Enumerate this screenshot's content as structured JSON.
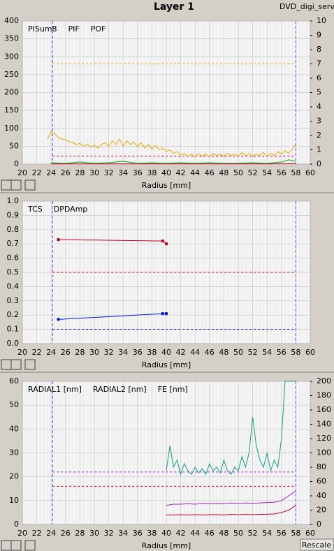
{
  "header": {
    "title": "Layer 1",
    "subtitle": "DVD_digi_serv"
  },
  "controls": {
    "rescale": "Rescale"
  },
  "chart_data": [
    {
      "type": "line",
      "xlabel": "Radius [mm]",
      "xlim": [
        20,
        60
      ],
      "xticks": [
        20,
        22,
        24,
        26,
        28,
        30,
        32,
        34,
        36,
        38,
        40,
        42,
        44,
        46,
        48,
        50,
        52,
        54,
        56,
        58,
        60
      ],
      "ylim": [
        0,
        400
      ],
      "yticks": [
        0,
        50,
        100,
        150,
        200,
        250,
        300,
        350,
        400
      ],
      "y2lim": [
        0,
        10
      ],
      "y2ticks": [
        0,
        1,
        2,
        3,
        4,
        5,
        6,
        7,
        8,
        9,
        10
      ],
      "grid": true,
      "vlines": [
        {
          "value": 24.2,
          "color": "#5a3cf0"
        },
        {
          "value": 58,
          "color": "#5a3cf0"
        }
      ],
      "hlines": [
        {
          "value": 280,
          "color": "#d8a000"
        },
        {
          "value": 22,
          "color": "#c00020"
        }
      ],
      "series": [
        {
          "name": "PISum8",
          "color": "#e8a800",
          "x": [
            23.5,
            24,
            24.5,
            25,
            25.5,
            26,
            26.5,
            27,
            27.5,
            28,
            28.5,
            29,
            29.5,
            30,
            30.5,
            31,
            31.5,
            32,
            32.5,
            33,
            33.5,
            34,
            34.5,
            35,
            35.5,
            36,
            36.5,
            37,
            37.5,
            38,
            38.5,
            39,
            39.5,
            40,
            40.5,
            41,
            41.5,
            42,
            42.5,
            43,
            43.5,
            44,
            44.5,
            45,
            45.5,
            46,
            46.5,
            47,
            47.5,
            48,
            48.5,
            49,
            49.5,
            50,
            50.5,
            51,
            51.5,
            52,
            52.5,
            53,
            53.5,
            54,
            54.5,
            55,
            55.5,
            56,
            56.5,
            57,
            57.5,
            58
          ],
          "values": [
            70,
            92,
            85,
            75,
            70,
            68,
            62,
            60,
            55,
            58,
            50,
            55,
            48,
            52,
            45,
            55,
            60,
            50,
            65,
            55,
            70,
            50,
            65,
            55,
            62,
            48,
            60,
            45,
            55,
            42,
            52,
            40,
            45,
            35,
            40,
            30,
            35,
            25,
            30,
            22,
            28,
            20,
            30,
            22,
            28,
            20,
            30,
            24,
            28,
            22,
            30,
            24,
            28,
            22,
            32,
            24,
            30,
            22,
            28,
            24,
            32,
            22,
            30,
            24,
            35,
            28,
            38,
            30,
            42,
            55
          ]
        },
        {
          "name": "PIF",
          "color": "#10a010",
          "axis": "y2",
          "x": [
            24,
            26,
            28,
            30,
            32,
            34,
            36,
            38,
            40,
            42,
            44,
            46,
            48,
            50,
            52,
            54,
            56,
            57,
            58
          ],
          "values": [
            0.1,
            0.05,
            0.15,
            0.05,
            0.1,
            0.2,
            0.05,
            0.1,
            0.05,
            0.1,
            0.05,
            0.1,
            0.05,
            0.05,
            0.1,
            0.05,
            0.15,
            0.3,
            0.2
          ]
        },
        {
          "name": "POF",
          "color": "#c00020",
          "axis": "y2",
          "x": [
            24,
            30,
            36,
            42,
            48,
            54,
            58
          ],
          "values": [
            0.02,
            0.02,
            0.02,
            0.02,
            0.02,
            0.02,
            0.05
          ]
        }
      ]
    },
    {
      "type": "line",
      "xlabel": "Radius [mm]",
      "xlim": [
        20,
        60
      ],
      "xticks": [
        20,
        22,
        24,
        26,
        28,
        30,
        32,
        34,
        36,
        38,
        40,
        42,
        44,
        46,
        48,
        50,
        52,
        54,
        56,
        58,
        60
      ],
      "ylim": [
        0,
        1
      ],
      "yticks": [
        {
          "value": 0,
          "label": "0.0"
        },
        0.1,
        0.2,
        0.3,
        0.4,
        0.5,
        0.6,
        0.7,
        0.8,
        0.9,
        {
          "value": 1,
          "label": "1.0"
        }
      ],
      "grid": true,
      "vlines": [
        {
          "value": 24.2,
          "color": "#5a3cf0"
        },
        {
          "value": 58,
          "color": "#5a3cf0"
        }
      ],
      "hlines": [
        {
          "value": 0.5,
          "color": "#c00020"
        },
        {
          "value": 0.1,
          "color": "#0018e0"
        }
      ],
      "series": [
        {
          "name": "TCS",
          "color": "#0018e0",
          "x": [
            25,
            39.5,
            40
          ],
          "values": [
            0.17,
            0.21,
            0.21
          ]
        },
        {
          "name": "DPDAmp",
          "color": "#c00020",
          "x": [
            25,
            39.5,
            40
          ],
          "values": [
            0.73,
            0.72,
            0.7
          ]
        }
      ]
    },
    {
      "type": "line",
      "xlabel": "Radius [mm]",
      "xlim": [
        20,
        60
      ],
      "xticks": [
        20,
        22,
        24,
        26,
        28,
        30,
        32,
        34,
        36,
        38,
        40,
        42,
        44,
        46,
        48,
        50,
        52,
        54,
        56,
        58,
        60
      ],
      "ylim": [
        0,
        60
      ],
      "yticks": [
        0,
        10,
        20,
        30,
        40,
        50,
        60
      ],
      "y2lim": [
        0,
        200
      ],
      "y2ticks": [
        0,
        20,
        40,
        60,
        80,
        100,
        120,
        140,
        160,
        180,
        200
      ],
      "grid": true,
      "vlines": [
        {
          "value": 24.2,
          "color": "#5a3cf0"
        },
        {
          "value": 58,
          "color": "#5a3cf0"
        }
      ],
      "hlines": [
        {
          "value": 22,
          "color": "#a020c0"
        },
        {
          "value": 16,
          "color": "#c00020"
        }
      ],
      "series": [
        {
          "name": "RADIAL1 [nm]",
          "color": "#a020c0",
          "x": [
            40,
            41,
            42,
            43,
            44,
            45,
            46,
            47,
            48,
            49,
            50,
            51,
            52,
            53,
            54,
            55,
            56,
            57,
            58
          ],
          "values": [
            8,
            8.5,
            8.5,
            8.7,
            8.5,
            8.8,
            8.6,
            8.8,
            8.7,
            9,
            8.8,
            9,
            8.9,
            9,
            9.2,
            9.3,
            10,
            12,
            14
          ]
        },
        {
          "name": "RADIAL2 [nm]",
          "color": "#c00020",
          "x": [
            40,
            41,
            42,
            43,
            44,
            45,
            46,
            47,
            48,
            49,
            50,
            51,
            52,
            53,
            54,
            55,
            56,
            57,
            58
          ],
          "values": [
            4,
            4,
            4.1,
            4,
            4.1,
            4,
            4.1,
            4.1,
            4,
            4.2,
            4.1,
            4.2,
            4.1,
            4.2,
            4.3,
            4.4,
            5,
            6,
            8
          ]
        },
        {
          "name": "FE [nm]",
          "color": "#10a080",
          "axis": "y2",
          "x": [
            40,
            40.5,
            41,
            41.5,
            42,
            42.5,
            43,
            43.5,
            44,
            44.5,
            45,
            45.5,
            46,
            46.5,
            47,
            47.5,
            48,
            48.5,
            49,
            49.5,
            50,
            50.5,
            51,
            51.5,
            52,
            52.5,
            53,
            53.5,
            54,
            54.5,
            55,
            55.5,
            56,
            56.5,
            57,
            57.5,
            58
          ],
          "values": [
            75,
            110,
            80,
            90,
            70,
            85,
            75,
            70,
            80,
            72,
            78,
            70,
            85,
            75,
            80,
            72,
            90,
            75,
            70,
            80,
            75,
            95,
            80,
            100,
            150,
            110,
            90,
            80,
            100,
            75,
            90,
            80,
            120,
            200,
            200,
            200,
            200
          ]
        }
      ]
    }
  ]
}
